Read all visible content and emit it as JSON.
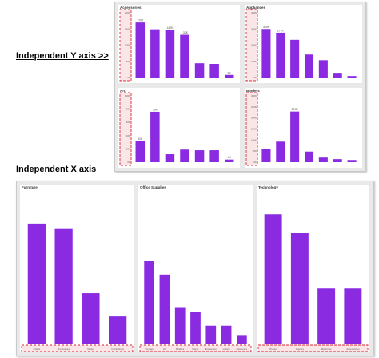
{
  "labels": {
    "independent_y": "Independent Y axis >>",
    "independent_x": "Independent X axis"
  },
  "colors": {
    "bar": "#8a2be2",
    "highlight": "#d6283a"
  },
  "chart_data": [
    {
      "type": "bar",
      "title": "Accessories",
      "layout": "independent-y",
      "categories": [
        "",
        "",
        "",
        "",
        "",
        "",
        ""
      ],
      "values": [
        170,
        149,
        147,
        132,
        44,
        42,
        8
      ],
      "data_labels": [
        "170K",
        "",
        "147K",
        "132K",
        "",
        "",
        "8K"
      ],
      "yticks": [
        "200K",
        "150K",
        "100K",
        "50K",
        "0K"
      ],
      "ylim": [
        0,
        200
      ]
    },
    {
      "type": "bar",
      "title": "Appliances",
      "layout": "independent-y",
      "categories": [
        "",
        "",
        "",
        "",
        "",
        "",
        ""
      ],
      "values": [
        300,
        277,
        233,
        142,
        107,
        29,
        9
      ],
      "data_labels": [
        "300K",
        "277K",
        "",
        "",
        "",
        "",
        ""
      ],
      "yticks": [
        "400K",
        "300K",
        "200K",
        "100K",
        "0K"
      ],
      "ylim": [
        0,
        400
      ]
    },
    {
      "type": "bar",
      "title": "Art",
      "layout": "independent-y",
      "categories": [
        "",
        "",
        "",
        "",
        "",
        "",
        ""
      ],
      "values": [
        32,
        76,
        12,
        19,
        18,
        18,
        4
      ],
      "data_labels": [
        "32K",
        "76K",
        "",
        "",
        "",
        "",
        "4K"
      ],
      "yticks": [
        "100K",
        "80K",
        "60K",
        "40K",
        "20K",
        "0K"
      ],
      "ylim": [
        0,
        100
      ]
    },
    {
      "type": "bar",
      "title": "Binders",
      "layout": "independent-y",
      "categories": [
        "",
        "",
        "",
        "",
        "",
        "",
        ""
      ],
      "values": [
        60,
        93,
        229,
        48,
        21,
        14,
        10
      ],
      "data_labels": [
        "",
        "",
        "229K",
        "",
        "",
        "",
        ""
      ],
      "yticks": [
        "300K",
        "250K",
        "200K",
        "150K",
        "100K",
        "50K",
        "0K"
      ],
      "ylim": [
        0,
        300
      ]
    },
    {
      "type": "bar",
      "title": "Furniture",
      "layout": "independent-x",
      "categories": [
        "Chairs",
        "Bookcases",
        "Tables",
        "Furnishings"
      ],
      "values": [
        2.6,
        2.5,
        1.1,
        0.6
      ],
      "data_labels": [
        "",
        "",
        "",
        ""
      ],
      "ylim": [
        0,
        3.2
      ]
    },
    {
      "type": "bar",
      "title": "Office Supplies",
      "layout": "independent-x",
      "categories": [
        "Storage",
        "Art",
        "Binders",
        "Paper",
        "Envelopes",
        "Labels",
        "Fasteners"
      ],
      "values": [
        1.8,
        1.5,
        0.8,
        0.7,
        0.4,
        0.4,
        0.2
      ],
      "data_labels": [
        "",
        "",
        "",
        "",
        "",
        "",
        ""
      ],
      "ylim": [
        0,
        3.2
      ]
    },
    {
      "type": "bar",
      "title": "Technology",
      "layout": "independent-x",
      "categories": [
        "Phones",
        "Copiers",
        "Machines",
        "Accessories"
      ],
      "values": [
        2.8,
        2.4,
        1.2,
        1.2
      ],
      "data_labels": [
        "",
        "",
        "",
        ""
      ],
      "ylim": [
        0,
        3.2
      ]
    }
  ]
}
